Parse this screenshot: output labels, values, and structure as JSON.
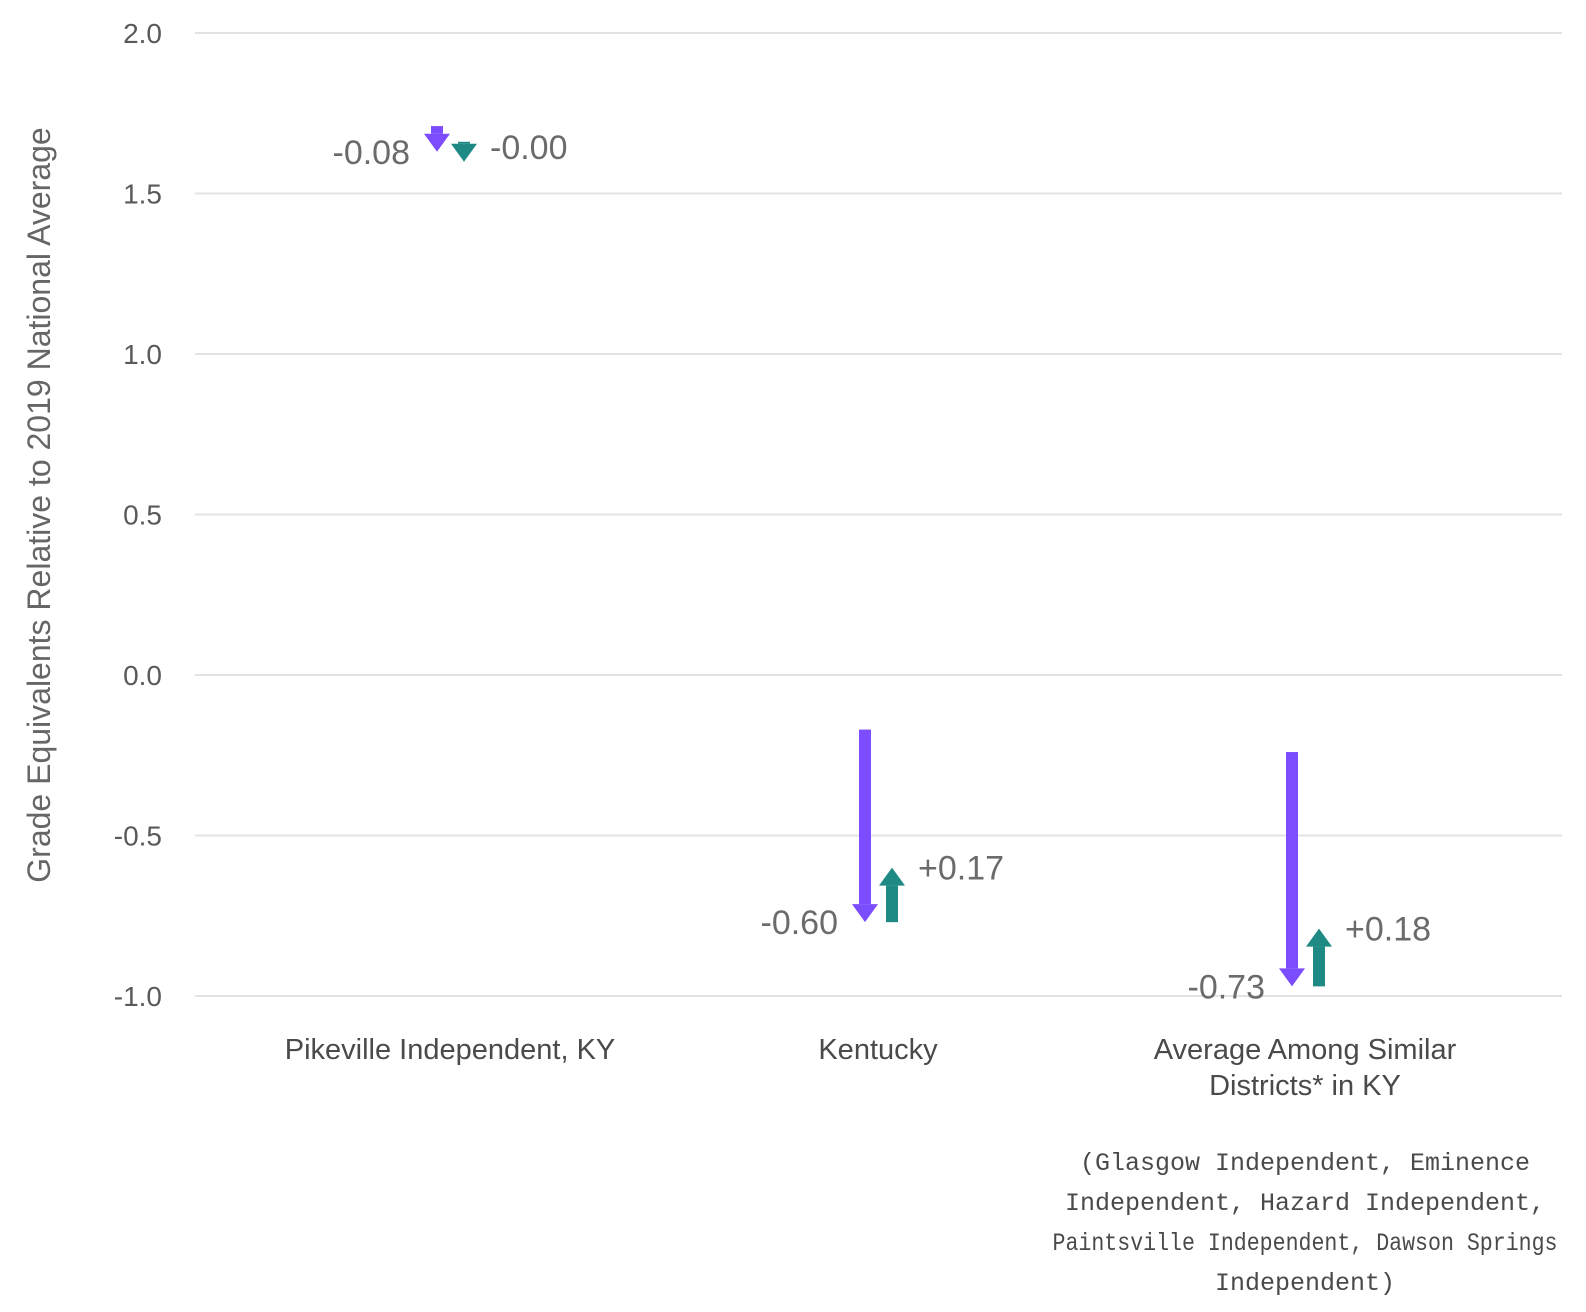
{
  "chart_data": {
    "type": "arrow",
    "ylabel": "Grade Equivalents Relative to 2019 National Average",
    "ylim": [
      -1.0,
      2.0
    ],
    "yticks": [
      "-1.0",
      "-0.5",
      "0.0",
      "0.5",
      "1.0",
      "1.5",
      "2.0"
    ],
    "ytick_values": [
      -1.0,
      -0.5,
      0.0,
      0.5,
      1.0,
      1.5,
      2.0
    ],
    "grid": true,
    "categories": [
      {
        "label_lines": [
          "Pikeville Independent, KY"
        ],
        "note_lines": [],
        "decline": {
          "start": 1.71,
          "change": -0.08,
          "label": "-0.08"
        },
        "recovery": {
          "start": 1.63,
          "change": -0.0,
          "label": "-0.00"
        }
      },
      {
        "label_lines": [
          "Kentucky"
        ],
        "note_lines": [],
        "decline": {
          "start": -0.17,
          "change": -0.6,
          "label": "-0.60"
        },
        "recovery": {
          "start": -0.77,
          "change": 0.17,
          "label": "+0.17"
        }
      },
      {
        "label_lines": [
          "Average Among Similar",
          "Districts* in KY"
        ],
        "note_lines": [
          "(Glasgow Independent, Eminence",
          "Independent, Hazard Independent,",
          "Paintsville Independent, Dawson Springs",
          "Independent)"
        ],
        "decline": {
          "start": -0.24,
          "change": -0.73,
          "label": "-0.73"
        },
        "recovery": {
          "start": -0.97,
          "change": 0.18,
          "label": "+0.18"
        }
      }
    ],
    "colors": {
      "decline": "#7c4dff",
      "recovery": "#1f8a84",
      "grid": "#e3e3e3"
    }
  }
}
